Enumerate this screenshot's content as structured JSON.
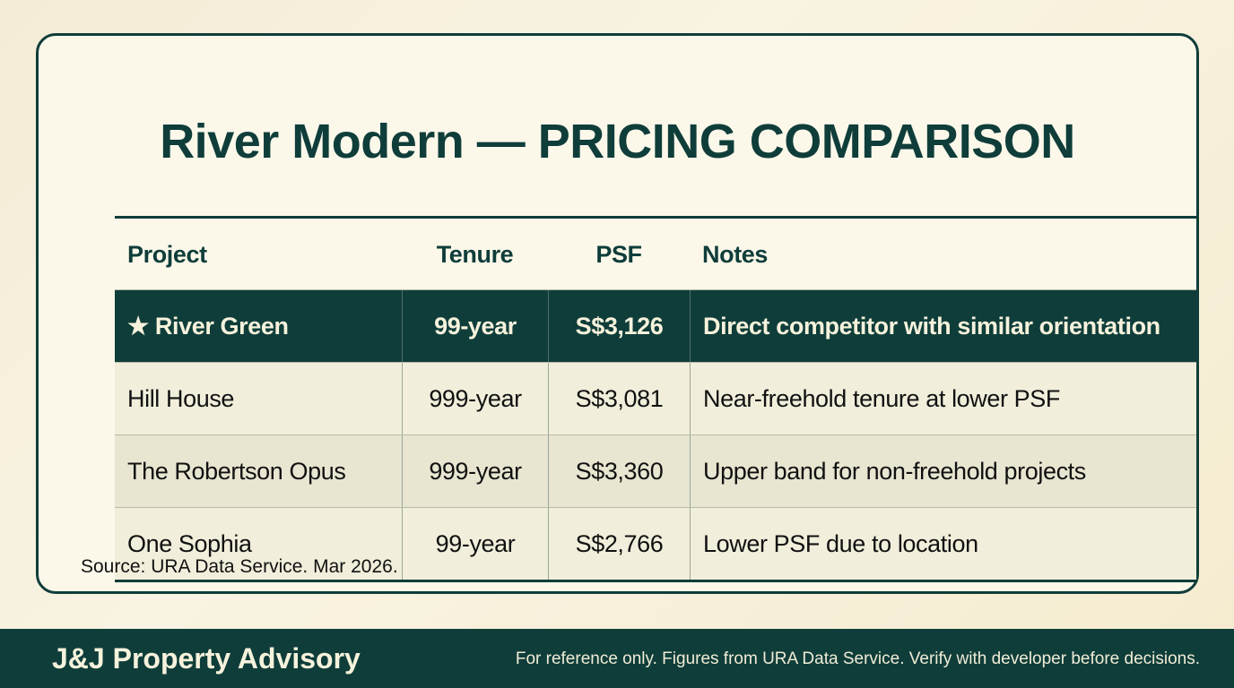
{
  "title": "River Modern — PRICING COMPARISON",
  "table": {
    "headers": [
      "Project",
      "Tenure",
      "PSF",
      "Notes"
    ],
    "rows": [
      {
        "project": "★ River Green",
        "tenure": "99-year",
        "psf": "S$3,126",
        "notes": "Direct competitor with similar orientation",
        "highlighted": true
      },
      {
        "project": "Hill House",
        "tenure": "999-year",
        "psf": "S$3,081",
        "notes": "Near-freehold tenure at lower PSF"
      },
      {
        "project": "The Robertson Opus",
        "tenure": "999-year",
        "psf": "S$3,360",
        "notes": "Upper band for non-freehold projects"
      },
      {
        "project": "One Sophia",
        "tenure": "99-year",
        "psf": "S$2,766",
        "notes": "Lower PSF due to location"
      }
    ]
  },
  "source": "Source: URA Data Service. Mar 2026.",
  "footer": {
    "brand": "J&J Property Advisory",
    "disclaimer": "For reference only. Figures from URA Data Service. Verify with developer before decisions."
  },
  "colors": {
    "primary": "#0f3d3a",
    "background": "#fbf8ea"
  }
}
